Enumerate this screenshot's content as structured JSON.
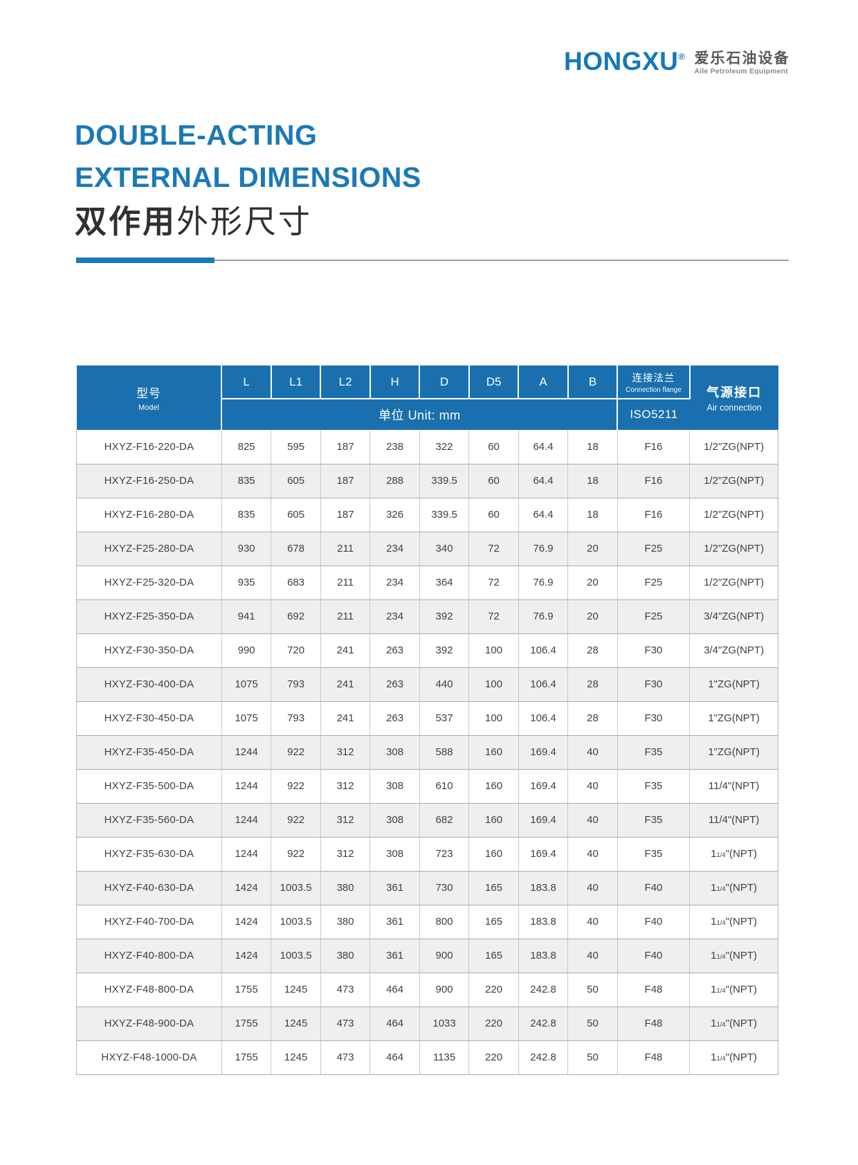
{
  "logo": {
    "brand": "HONGXU",
    "registered": "®",
    "company_cn": "爱乐石油设备",
    "company_en": "Aile Petroleum Equipment"
  },
  "title": {
    "line1": "DOUBLE-ACTING",
    "line2": "EXTERNAL DIMENSIONS",
    "cn_bold": "双作用",
    "cn_rest": "外形尺寸"
  },
  "table": {
    "header": {
      "model_cn": "型号",
      "model_en": "Model",
      "dims": [
        "L",
        "L1",
        "L2",
        "H",
        "D",
        "D5",
        "A",
        "B"
      ],
      "unit_label": "单位 Unit:  mm",
      "flange_cn": "连接法兰",
      "flange_en": "Connection flange",
      "flange_std": "ISO5211",
      "air_cn": "气源接口",
      "air_en": "Air connection"
    },
    "rows": [
      {
        "model": "HXYZ-F16-220-DA",
        "values": [
          "825",
          "595",
          "187",
          "238",
          "322",
          "60",
          "64.4",
          "18"
        ],
        "flange": "F16",
        "air": "1/2\"ZG(NPT)"
      },
      {
        "model": "HXYZ-F16-250-DA",
        "values": [
          "835",
          "605",
          "187",
          "288",
          "339.5",
          "60",
          "64.4",
          "18"
        ],
        "flange": "F16",
        "air": "1/2\"ZG(NPT)"
      },
      {
        "model": "HXYZ-F16-280-DA",
        "values": [
          "835",
          "605",
          "187",
          "326",
          "339.5",
          "60",
          "64.4",
          "18"
        ],
        "flange": "F16",
        "air": "1/2\"ZG(NPT)"
      },
      {
        "model": "HXYZ-F25-280-DA",
        "values": [
          "930",
          "678",
          "211",
          "234",
          "340",
          "72",
          "76.9",
          "20"
        ],
        "flange": "F25",
        "air": "1/2\"ZG(NPT)"
      },
      {
        "model": "HXYZ-F25-320-DA",
        "values": [
          "935",
          "683",
          "211",
          "234",
          "364",
          "72",
          "76.9",
          "20"
        ],
        "flange": "F25",
        "air": "1/2\"ZG(NPT)"
      },
      {
        "model": "HXYZ-F25-350-DA",
        "values": [
          "941",
          "692",
          "211",
          "234",
          "392",
          "72",
          "76.9",
          "20"
        ],
        "flange": "F25",
        "air": "3/4\"ZG(NPT)"
      },
      {
        "model": "HXYZ-F30-350-DA",
        "values": [
          "990",
          "720",
          "241",
          "263",
          "392",
          "100",
          "106.4",
          "28"
        ],
        "flange": "F30",
        "air": "3/4\"ZG(NPT)"
      },
      {
        "model": "HXYZ-F30-400-DA",
        "values": [
          "1075",
          "793",
          "241",
          "263",
          "440",
          "100",
          "106.4",
          "28"
        ],
        "flange": "F30",
        "air": "1\"ZG(NPT)"
      },
      {
        "model": "HXYZ-F30-450-DA",
        "values": [
          "1075",
          "793",
          "241",
          "263",
          "537",
          "100",
          "106.4",
          "28"
        ],
        "flange": "F30",
        "air": "1\"ZG(NPT)"
      },
      {
        "model": "HXYZ-F35-450-DA",
        "values": [
          "1244",
          "922",
          "312",
          "308",
          "588",
          "160",
          "169.4",
          "40"
        ],
        "flange": "F35",
        "air": "1\"ZG(NPT)"
      },
      {
        "model": "HXYZ-F35-500-DA",
        "values": [
          "1244",
          "922",
          "312",
          "308",
          "610",
          "160",
          "169.4",
          "40"
        ],
        "flange": "F35",
        "air": "11/4\"(NPT)"
      },
      {
        "model": "HXYZ-F35-560-DA",
        "values": [
          "1244",
          "922",
          "312",
          "308",
          "682",
          "160",
          "169.4",
          "40"
        ],
        "flange": "F35",
        "air": "11/4\"(NPT)"
      },
      {
        "model": "HXYZ-F35-630-DA",
        "values": [
          "1244",
          "922",
          "312",
          "308",
          "723",
          "160",
          "169.4",
          "40"
        ],
        "flange": "F35",
        "air": "11/4\"(NPT)",
        "air_parts": {
          "pre": "1",
          "frac": "1/4",
          "post": "\"(NPT)"
        }
      },
      {
        "model": "HXYZ-F40-630-DA",
        "values": [
          "1424",
          "1003.5",
          "380",
          "361",
          "730",
          "165",
          "183.8",
          "40"
        ],
        "flange": "F40",
        "air": "11/4\"(NPT)",
        "air_parts": {
          "pre": "1",
          "frac": "1/4",
          "post": "\"(NPT)"
        }
      },
      {
        "model": "HXYZ-F40-700-DA",
        "values": [
          "1424",
          "1003.5",
          "380",
          "361",
          "800",
          "165",
          "183.8",
          "40"
        ],
        "flange": "F40",
        "air": "11/4\"(NPT)",
        "air_parts": {
          "pre": "1",
          "frac": "1/4",
          "post": "\"(NPT)"
        }
      },
      {
        "model": "HXYZ-F40-800-DA",
        "values": [
          "1424",
          "1003.5",
          "380",
          "361",
          "900",
          "165",
          "183.8",
          "40"
        ],
        "flange": "F40",
        "air": "11/4\"(NPT)",
        "air_parts": {
          "pre": "1",
          "frac": "1/4",
          "post": "\"(NPT)"
        }
      },
      {
        "model": "HXYZ-F48-800-DA",
        "values": [
          "1755",
          "1245",
          "473",
          "464",
          "900",
          "220",
          "242.8",
          "50"
        ],
        "flange": "F48",
        "air": "11/4\"(NPT)",
        "air_parts": {
          "pre": "1",
          "frac": "1/4",
          "post": "\"(NPT)"
        }
      },
      {
        "model": "HXYZ-F48-900-DA",
        "values": [
          "1755",
          "1245",
          "473",
          "464",
          "1033",
          "220",
          "242.8",
          "50"
        ],
        "flange": "F48",
        "air": "11/4\"(NPT)",
        "air_parts": {
          "pre": "1",
          "frac": "1/4",
          "post": "\"(NPT)"
        }
      },
      {
        "model": "HXYZ-F48-1000-DA",
        "values": [
          "1755",
          "1245",
          "473",
          "464",
          "1135",
          "220",
          "242.8",
          "50"
        ],
        "flange": "F48",
        "air": "11/4\"(NPT)",
        "air_parts": {
          "pre": "1",
          "frac": "1/4",
          "post": "\"(NPT)"
        }
      }
    ]
  },
  "colors": {
    "accent_blue": "#1b79b7",
    "header_blue": "#1a70ae",
    "brand_blue": "#1478ba",
    "stripe_gray": "#efefef",
    "text_dark": "#3f4040",
    "divider_gray": "#9b9da0"
  }
}
